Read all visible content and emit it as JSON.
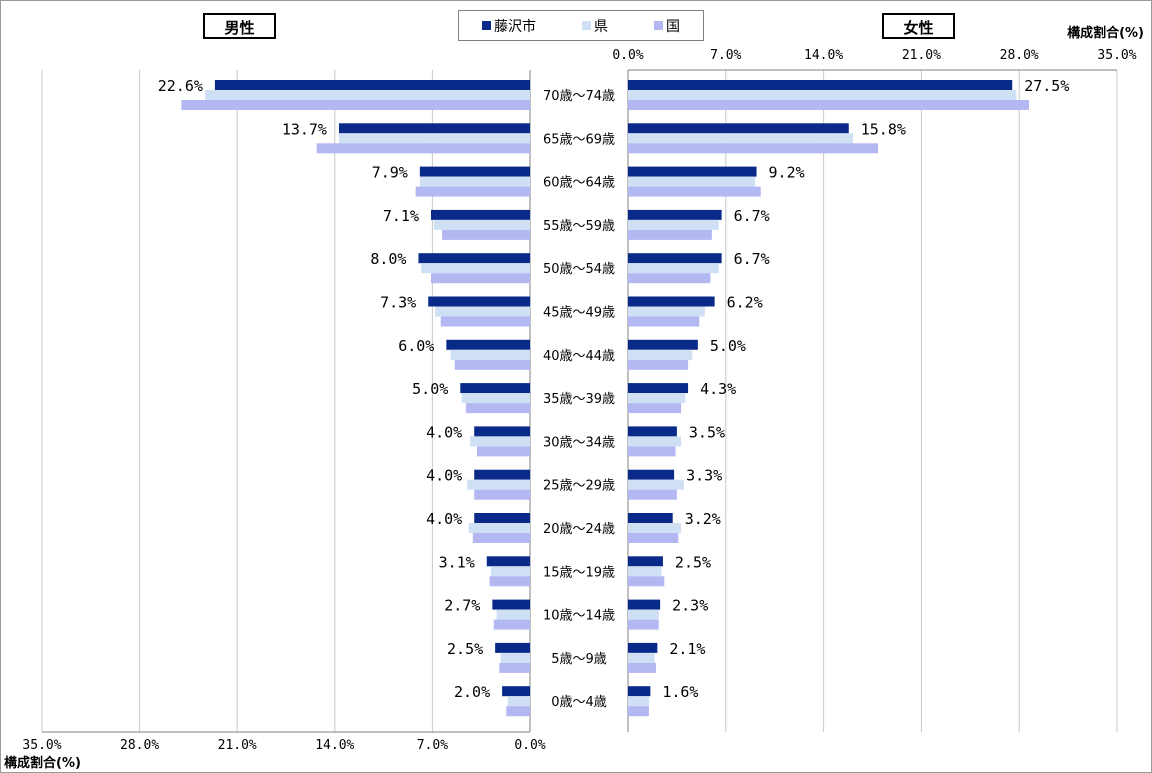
{
  "chart_data": {
    "type": "bar",
    "orientation": "horizontal",
    "layout": "population-pyramid",
    "panels": {
      "male": {
        "label": "男性"
      },
      "female": {
        "label": "女性"
      }
    },
    "categories": [
      "70歳～74歳",
      "65歳～69歳",
      "60歳～64歳",
      "55歳～59歳",
      "50歳～54歳",
      "45歳～49歳",
      "40歳～44歳",
      "35歳～39歳",
      "30歳～34歳",
      "25歳～29歳",
      "20歳～24歳",
      "15歳～19歳",
      "10歳～14歳",
      "5歳～9歳",
      "0歳～4歳"
    ],
    "series": [
      {
        "name": "藤沢市",
        "color": "#0a2a8a",
        "male": [
          22.6,
          13.7,
          7.9,
          7.1,
          8.0,
          7.3,
          6.0,
          5.0,
          4.0,
          4.0,
          4.0,
          3.1,
          2.7,
          2.5,
          2.0
        ],
        "female": [
          27.5,
          15.8,
          9.2,
          6.7,
          6.7,
          6.2,
          5.0,
          4.3,
          3.5,
          3.3,
          3.2,
          2.5,
          2.3,
          2.1,
          1.6
        ]
      },
      {
        "name": "県",
        "color": "#cfe0f5",
        "male": [
          23.3,
          13.7,
          7.9,
          6.9,
          7.8,
          6.8,
          5.7,
          4.9,
          4.3,
          4.5,
          4.4,
          2.8,
          2.4,
          2.1,
          1.6
        ],
        "female": [
          27.8,
          16.1,
          9.1,
          6.5,
          6.5,
          5.5,
          4.6,
          4.1,
          3.8,
          4.0,
          3.8,
          2.4,
          2.2,
          1.9,
          1.5
        ]
      },
      {
        "name": "国",
        "color": "#b3b7f2",
        "male": [
          25.0,
          15.3,
          8.2,
          6.3,
          7.1,
          6.4,
          5.4,
          4.6,
          3.8,
          4.0,
          4.1,
          2.9,
          2.6,
          2.2,
          1.7
        ],
        "female": [
          28.7,
          17.9,
          9.5,
          6.0,
          5.9,
          5.1,
          4.3,
          3.8,
          3.4,
          3.5,
          3.6,
          2.6,
          2.2,
          2.0,
          1.5
        ]
      }
    ],
    "data_labels_series": "藤沢市",
    "xlim": [
      0,
      35
    ],
    "ticks": [
      0,
      7,
      14,
      21,
      28,
      35
    ],
    "tick_labels": {
      "male": [
        "35.0%",
        "28.0%",
        "21.0%",
        "14.0%",
        "7.0%",
        "0.0%"
      ],
      "female": [
        "0.0%",
        "7.0%",
        "14.0%",
        "21.0%",
        "28.0%",
        "35.0%"
      ]
    },
    "xlabel": "構成割合(%)",
    "legend_position": "top-center",
    "grid": "vertical"
  }
}
